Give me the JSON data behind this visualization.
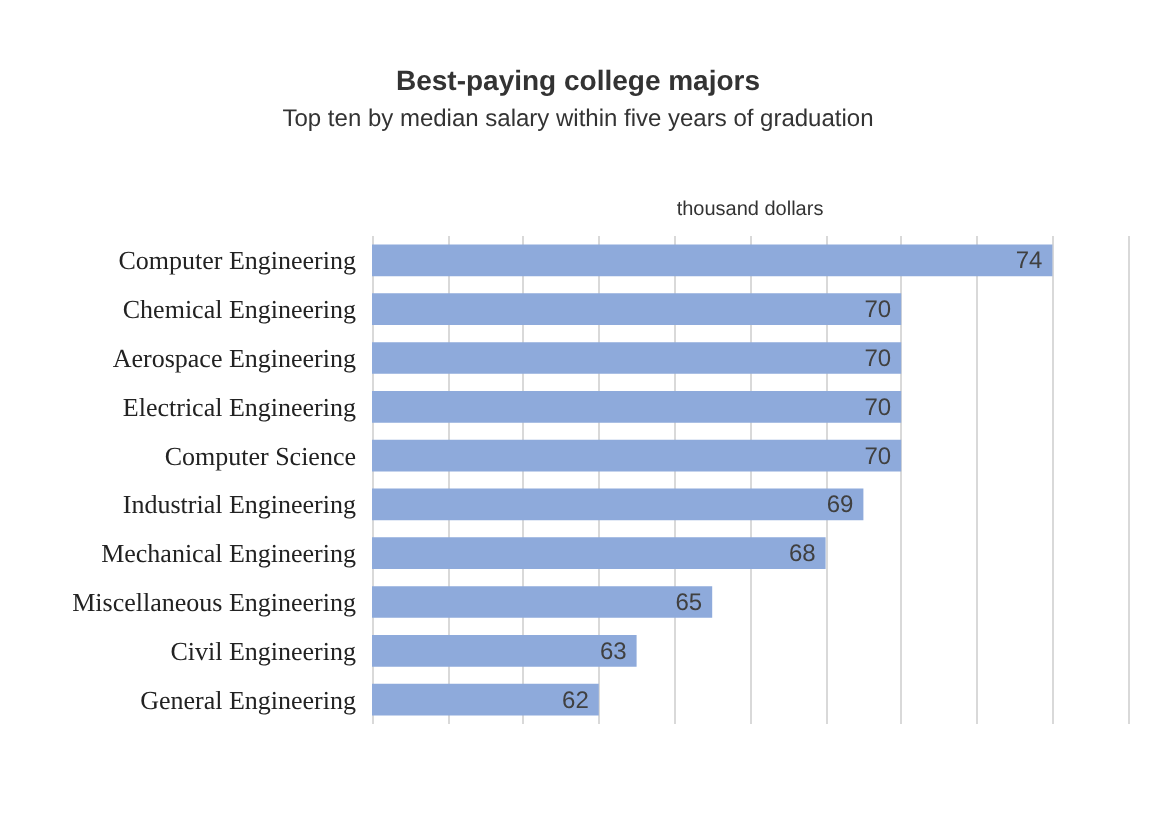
{
  "chart_data": {
    "type": "bar",
    "orientation": "horizontal",
    "title": "Best-paying college majors",
    "subtitle": "Top ten by median salary within five years of graduation",
    "xlabel": "thousand dollars",
    "categories": [
      "Computer Engineering",
      "Chemical Engineering",
      "Aerospace Engineering",
      "Electrical Engineering",
      "Computer Science",
      "Industrial Engineering",
      "Mechanical Engineering",
      "Miscellaneous Engineering",
      "Civil Engineering",
      "General Engineering"
    ],
    "values": [
      74,
      70,
      70,
      70,
      70,
      69,
      68,
      65,
      63,
      62
    ],
    "color": "#8eaadb",
    "xlim": [
      56,
      76
    ],
    "xticks": [
      {
        "value": 56,
        "label": null
      },
      {
        "value": 58,
        "label": null
      },
      {
        "value": 60,
        "label": null
      },
      {
        "value": 62,
        "label": null
      },
      {
        "value": 64,
        "label": null
      },
      {
        "value": 66,
        "label": null
      },
      {
        "value": 68,
        "label": null
      },
      {
        "value": 70,
        "label": null
      },
      {
        "value": 72,
        "label": null
      },
      {
        "value": 74,
        "label": null
      },
      {
        "value": 76,
        "label": null
      }
    ],
    "grid": "x",
    "data_labels": true,
    "tick_labels": "y"
  }
}
